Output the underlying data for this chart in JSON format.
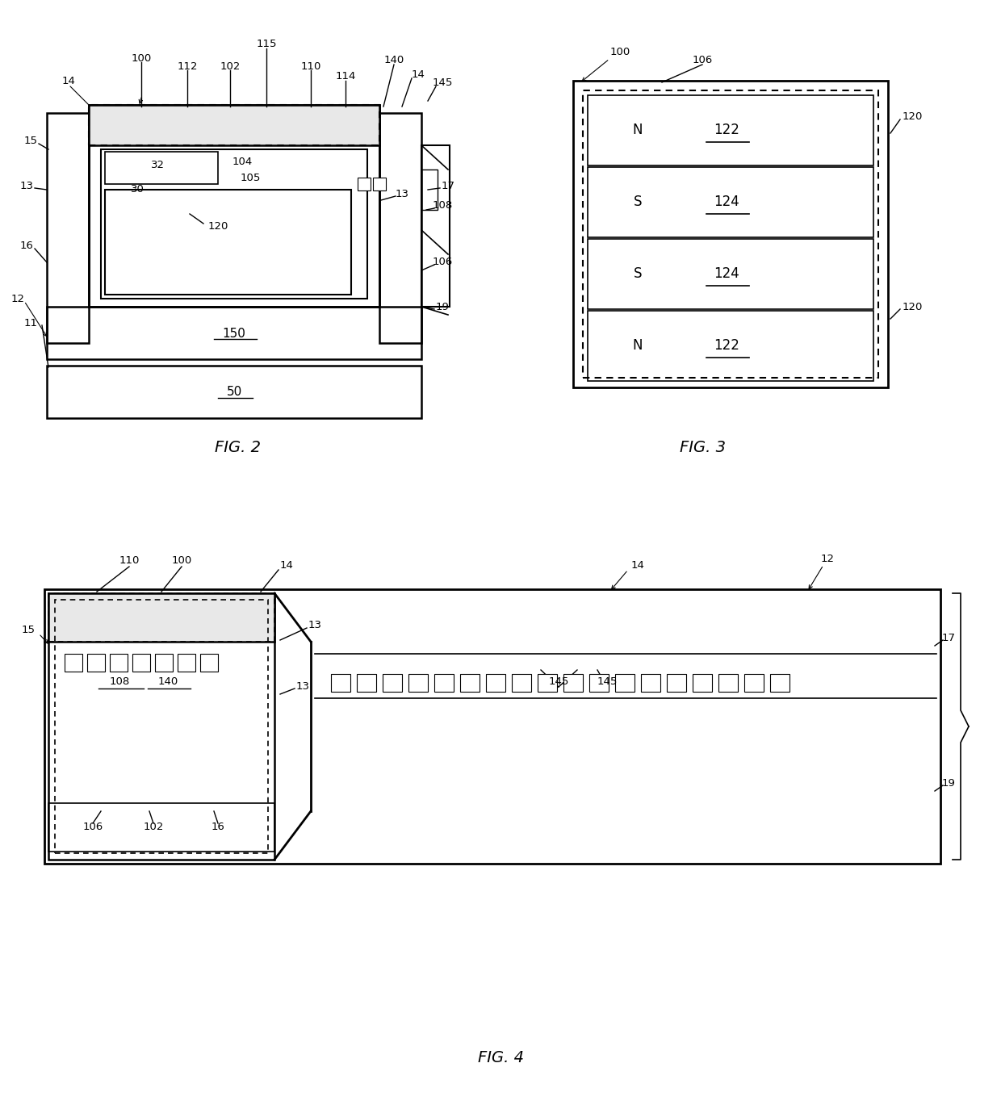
{
  "bg_color": "#ffffff",
  "line_color": "#000000",
  "fig2_caption": "FIG. 2",
  "fig3_caption": "FIG. 3",
  "fig4_caption": "FIG. 4"
}
